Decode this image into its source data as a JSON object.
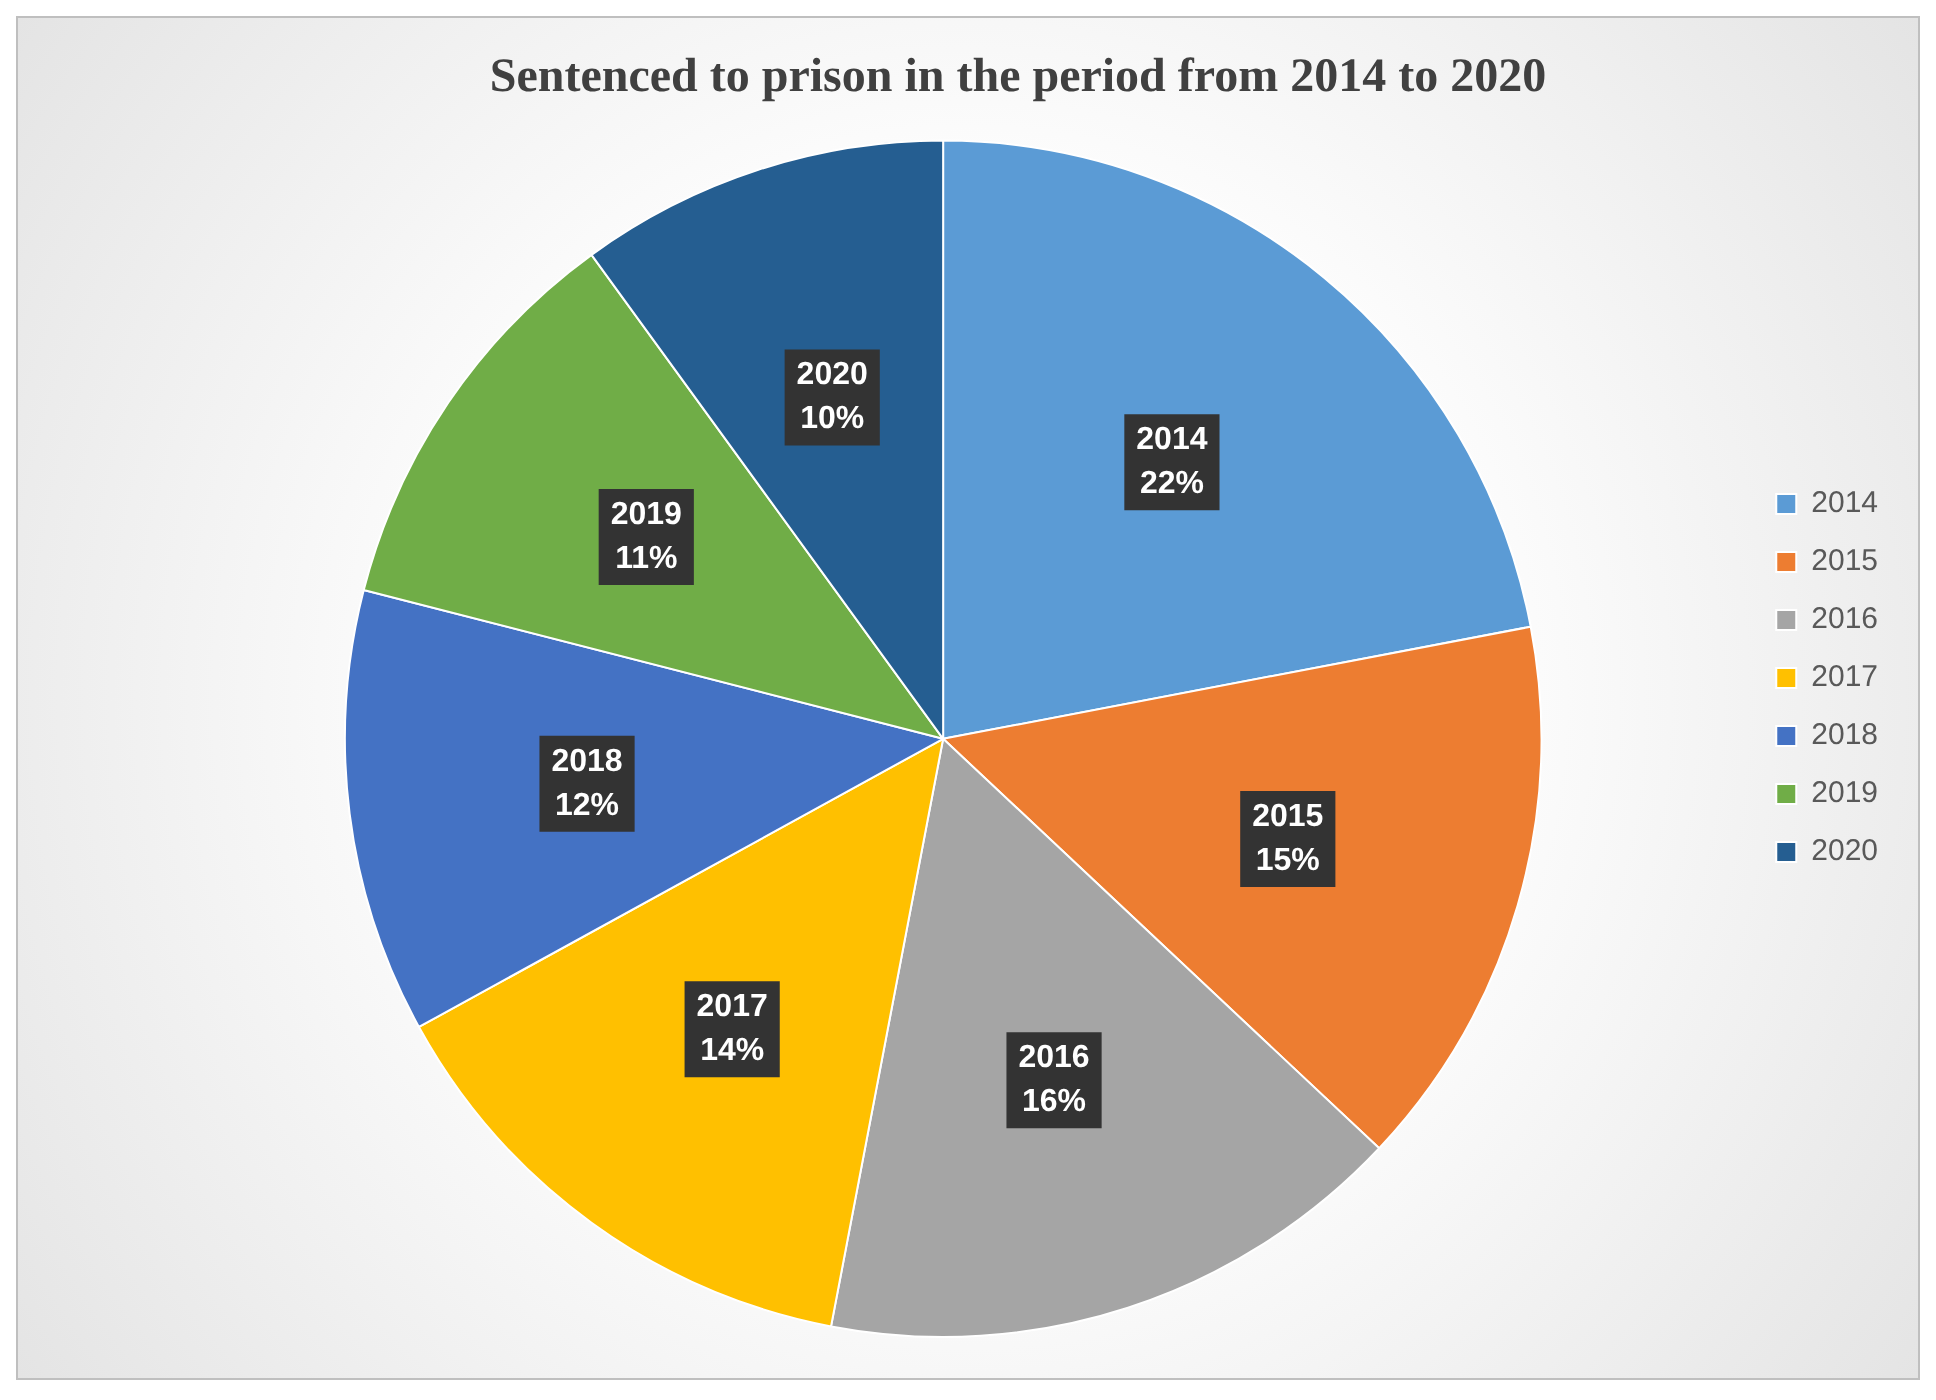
{
  "chart_data": {
    "type": "pie",
    "title": "Sentenced to prison in the period from 2014 to 2020",
    "categories": [
      "2014",
      "2015",
      "2016",
      "2017",
      "2018",
      "2019",
      "2020"
    ],
    "values": [
      22,
      15,
      16,
      14,
      12,
      11,
      10
    ],
    "colors": [
      "#5b9bd5",
      "#ed7d31",
      "#a5a5a5",
      "#ffc000",
      "#4472c4",
      "#70ad47",
      "#255e91"
    ],
    "value_labels": [
      "22%",
      "15%",
      "16%",
      "14%",
      "12%",
      "11%",
      "10%"
    ],
    "legend": "right"
  }
}
